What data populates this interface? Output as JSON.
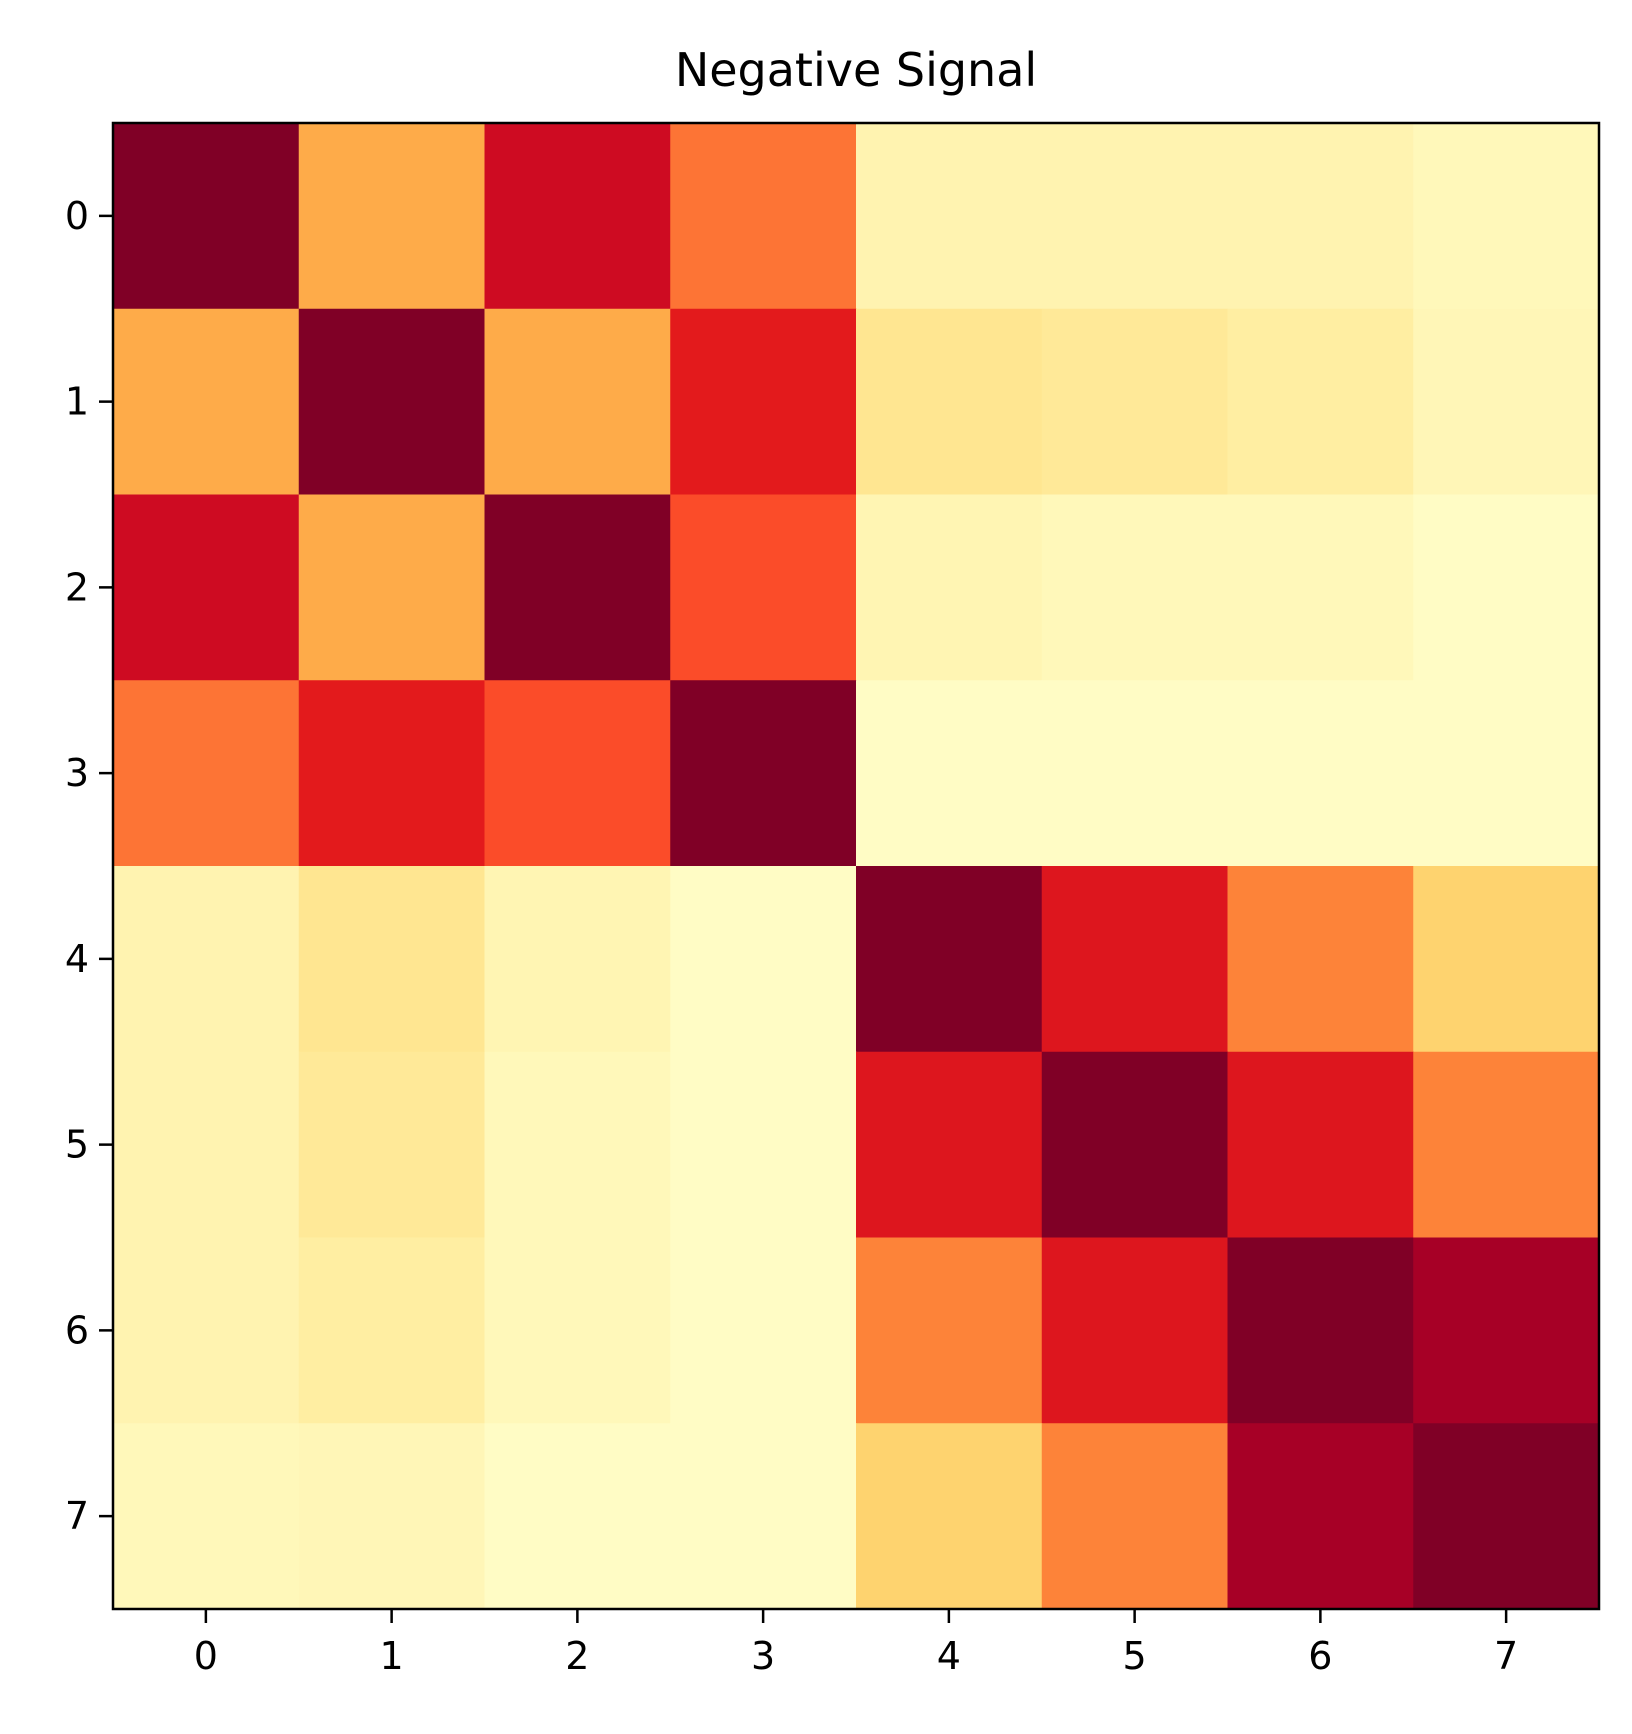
{
  "chart_data": {
    "type": "heatmap",
    "title": "Negative Signal",
    "xlabel": "",
    "ylabel": "",
    "x_categories": [
      "0",
      "1",
      "2",
      "3",
      "4",
      "5",
      "6",
      "7"
    ],
    "y_categories": [
      "0",
      "1",
      "2",
      "3",
      "4",
      "5",
      "6",
      "7"
    ],
    "colormap": "YlOrRd",
    "vlim": [
      0,
      1
    ],
    "grid": false,
    "legend": "none",
    "values": [
      [
        1.0,
        0.4,
        0.82,
        0.55,
        0.08,
        0.08,
        0.08,
        0.05
      ],
      [
        0.4,
        1.0,
        0.4,
        0.75,
        0.17,
        0.15,
        0.12,
        0.06
      ],
      [
        0.82,
        0.4,
        1.0,
        0.63,
        0.07,
        0.05,
        0.05,
        0.02
      ],
      [
        0.55,
        0.75,
        0.63,
        1.0,
        0.02,
        0.02,
        0.02,
        0.02
      ],
      [
        0.08,
        0.17,
        0.07,
        0.02,
        1.0,
        0.77,
        0.52,
        0.27
      ],
      [
        0.08,
        0.15,
        0.05,
        0.02,
        0.77,
        1.0,
        0.77,
        0.52
      ],
      [
        0.08,
        0.12,
        0.05,
        0.02,
        0.52,
        0.77,
        1.0,
        0.92
      ],
      [
        0.05,
        0.06,
        0.02,
        0.02,
        0.27,
        0.52,
        0.92,
        1.0
      ]
    ]
  }
}
